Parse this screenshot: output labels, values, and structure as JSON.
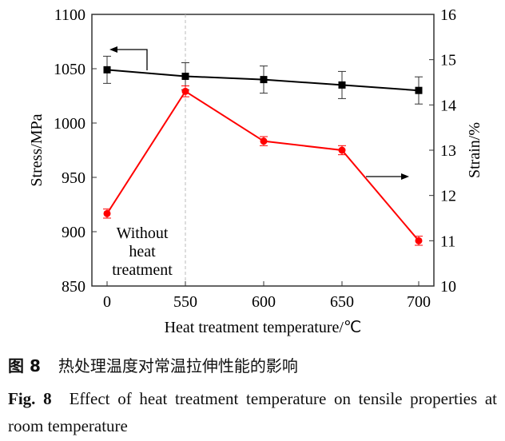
{
  "chart_data": {
    "type": "line",
    "xlabel": "Heat treatment temperature/℃",
    "ylabel_left": "Stress/MPa",
    "ylabel_right": "Strain/%",
    "categories": [
      "0",
      "550",
      "600",
      "650",
      "700"
    ],
    "ylim_left": [
      850,
      1100
    ],
    "yticks_left": [
      850,
      900,
      950,
      1000,
      1050,
      1100
    ],
    "ylim_right": [
      10,
      16
    ],
    "yticks_right": [
      10,
      11,
      12,
      13,
      14,
      15,
      16
    ],
    "grid": false,
    "series": [
      {
        "axis": "left",
        "color": "#000000",
        "marker": "square",
        "values": [
          1049,
          1043,
          1040,
          1035,
          1030
        ],
        "errors": [
          12.5,
          12.5,
          12.5,
          12.5,
          12.5
        ]
      },
      {
        "axis": "right",
        "color": "#ff0000",
        "marker": "circle",
        "values": [
          11.6,
          14.3,
          13.2,
          13.0,
          11.0
        ],
        "errors": [
          0.1,
          0.12,
          0.1,
          0.1,
          0.1
        ]
      }
    ],
    "annotation": [
      "Without",
      "heat",
      "treatment"
    ]
  },
  "caption": {
    "cn_label": "图 8",
    "cn_text": "热处理温度对常温拉伸性能的影响",
    "en_label": "Fig. 8",
    "en_text": "Effect of heat treatment temperature on tensile properties at room temperature"
  }
}
